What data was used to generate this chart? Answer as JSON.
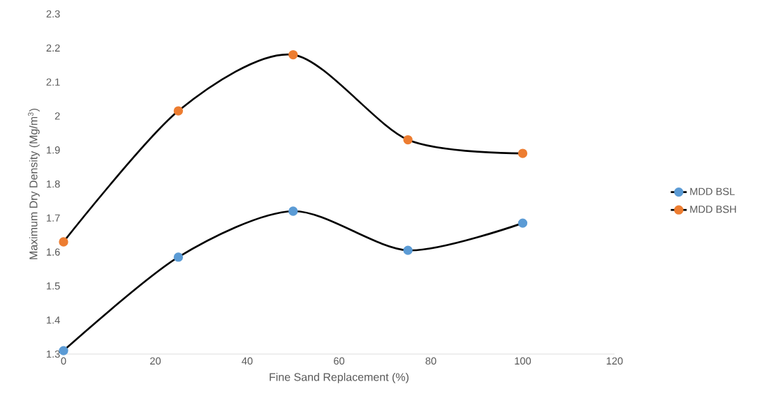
{
  "chart_data": {
    "type": "line",
    "xlabel": "Fine Sand Replacement  (%)",
    "ylabel": "Maximum Dry Density (Mg/m$^{3}$)",
    "x": [
      0,
      25,
      50,
      75,
      100
    ],
    "series": [
      {
        "name": "MDD BSL",
        "color": "#5b9bd5",
        "values": [
          1.31,
          1.585,
          1.72,
          1.605,
          1.685
        ]
      },
      {
        "name": "MDD BSH",
        "color": "#ed7d31",
        "values": [
          1.63,
          2.015,
          2.18,
          1.93,
          1.89
        ]
      }
    ],
    "xlim": [
      0,
      120
    ],
    "xticks": [
      0,
      20,
      40,
      60,
      80,
      100,
      120
    ],
    "ylim": [
      1.3,
      2.3
    ],
    "yticks": [
      1.3,
      1.4,
      1.5,
      1.6,
      1.7,
      1.8,
      1.9,
      2,
      2.1,
      2.2,
      2.3
    ],
    "grid": false,
    "legend": "right",
    "marker": "circle",
    "line_style": "solid"
  }
}
